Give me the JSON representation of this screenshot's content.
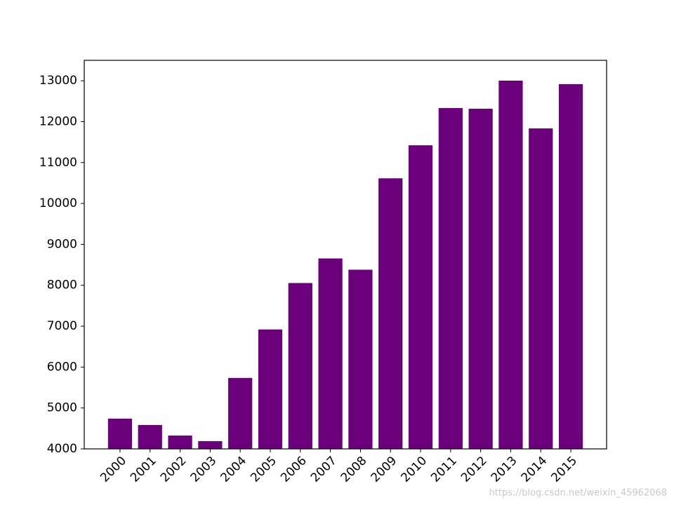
{
  "chart_data": {
    "type": "bar",
    "categories": [
      "2000",
      "2001",
      "2002",
      "2003",
      "2004",
      "2005",
      "2006",
      "2007",
      "2008",
      "2009",
      "2010",
      "2011",
      "2012",
      "2013",
      "2014",
      "2015"
    ],
    "values": [
      4740,
      4584,
      4326,
      4189,
      5735,
      6920,
      8055,
      8656,
      8381,
      10615,
      11423,
      12333,
      12316,
      13003,
      11835,
      12918
    ],
    "color": "#6a007a",
    "ylim": [
      4000,
      13500
    ],
    "yticks": [
      4000,
      5000,
      6000,
      7000,
      8000,
      9000,
      10000,
      11000,
      12000,
      13000
    ],
    "grid": false,
    "watermark": "https://blog.csdn.net/weixin_45962068"
  }
}
